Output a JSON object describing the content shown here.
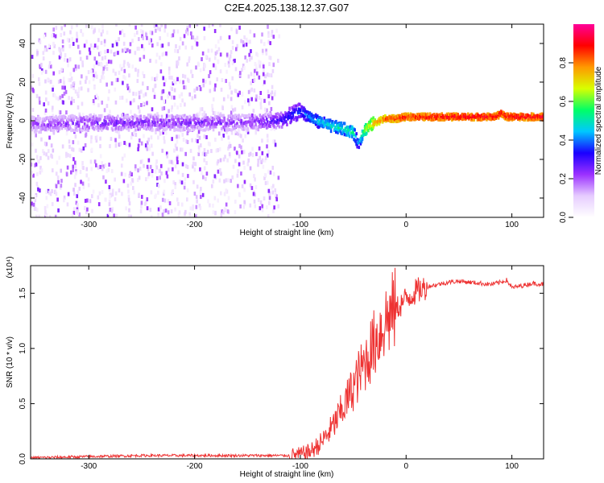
{
  "chart_data": [
    {
      "type": "heatmap",
      "title": "C2E4.2025.138.12.37.G07",
      "xlabel": "Height of straight line (km)",
      "ylabel": "Frequency (Hz)",
      "xlim": [
        -355,
        130
      ],
      "ylim": [
        -50,
        50
      ],
      "x_ticks": [
        "-300",
        "-200",
        "-100",
        "0",
        "100"
      ],
      "x_tick_values": [
        -300,
        -200,
        -100,
        0,
        100
      ],
      "y_ticks": [
        "-40",
        "-20",
        "0",
        "20",
        "40"
      ],
      "y_tick_values": [
        -40,
        -20,
        0,
        20,
        40
      ],
      "ridge": {
        "x": [
          -350,
          -300,
          -250,
          -200,
          -150,
          -120,
          -100,
          -85,
          -70,
          -60,
          -50,
          -45,
          -40,
          -30,
          -20,
          -10,
          0,
          50,
          85,
          90,
          95,
          130
        ],
        "frequency": [
          -2,
          -1,
          -1,
          -1,
          -1,
          0,
          5,
          0,
          -3,
          -4,
          -6,
          -12,
          -5,
          -1,
          1,
          1,
          2,
          2,
          2,
          4,
          2,
          2
        ],
        "amplitude": [
          0.22,
          0.25,
          0.25,
          0.25,
          0.24,
          0.3,
          0.38,
          0.45,
          0.5,
          0.52,
          0.55,
          0.4,
          0.6,
          0.75,
          0.85,
          0.88,
          0.9,
          0.92,
          0.92,
          0.9,
          0.92,
          0.92
        ]
      },
      "noise_floor_extent_km": [
        -355,
        -120
      ],
      "colorbar": {
        "label": "Normalized spectral amplitude",
        "range": [
          0,
          1
        ],
        "ticks": [
          "0.0",
          "0.2",
          "0.4",
          "0.6",
          "0.8"
        ],
        "tick_values": [
          0.0,
          0.2,
          0.4,
          0.6,
          0.8
        ],
        "colors": [
          "#ffffff",
          "#e6ccff",
          "#9b30ff",
          "#1a00ff",
          "#00c8ff",
          "#00ff66",
          "#d8ff00",
          "#ff9900",
          "#ff0000",
          "#ff0099"
        ]
      }
    },
    {
      "type": "line",
      "title": "",
      "xlabel": "Height of straight line (km)",
      "ylabel": "SNR (10 * v/v)",
      "scale_label": "(x10⁴)",
      "xlim": [
        -355,
        130
      ],
      "ylim": [
        0,
        1.75
      ],
      "x_ticks": [
        "-300",
        "-200",
        "-100",
        "0",
        "100"
      ],
      "x_tick_values": [
        -300,
        -200,
        -100,
        0,
        100
      ],
      "y_ticks": [
        "0.0",
        "0.5",
        "1.0",
        "1.5"
      ],
      "y_tick_values": [
        0.0,
        0.5,
        1.0,
        1.5
      ],
      "series": [
        {
          "name": "SNR",
          "color": "#ee3333",
          "x": [
            -355,
            -300,
            -250,
            -200,
            -150,
            -110,
            -100,
            -90,
            -80,
            -70,
            -60,
            -50,
            -40,
            -30,
            -20,
            -10,
            0,
            10,
            20,
            30,
            40,
            50,
            60,
            70,
            80,
            90,
            95,
            100,
            110,
            120,
            130
          ],
          "values": [
            0.01,
            0.02,
            0.03,
            0.03,
            0.03,
            0.03,
            0.04,
            0.07,
            0.15,
            0.28,
            0.45,
            0.65,
            0.85,
            1.05,
            1.25,
            1.35,
            1.45,
            1.52,
            1.56,
            1.58,
            1.6,
            1.61,
            1.6,
            1.59,
            1.58,
            1.6,
            1.62,
            1.55,
            1.57,
            1.59,
            1.58
          ]
        }
      ]
    }
  ]
}
